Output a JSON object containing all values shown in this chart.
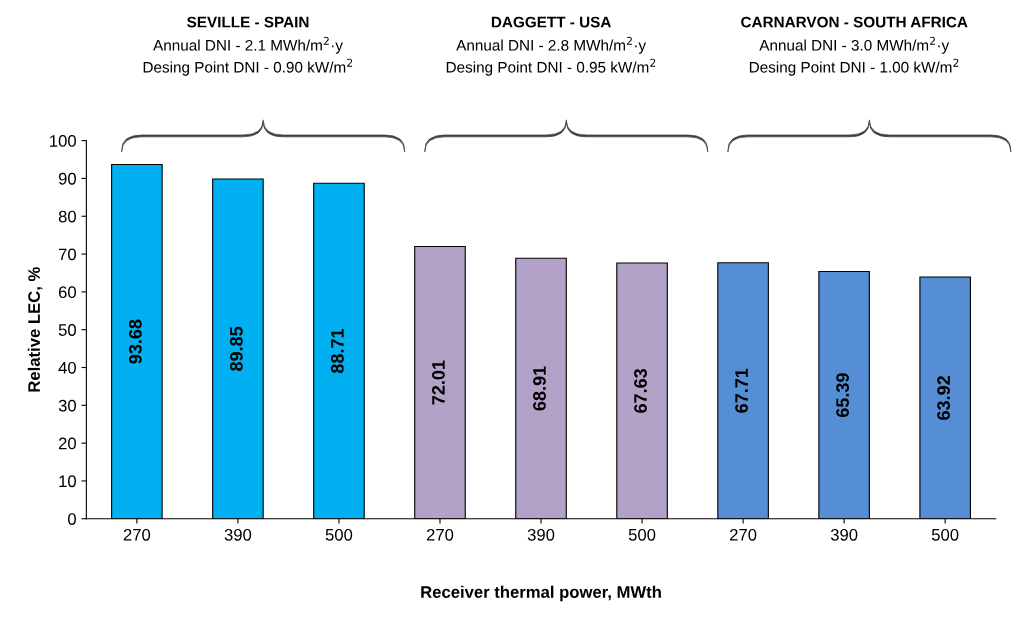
{
  "chart_data": {
    "type": "bar",
    "xlabel": "Receiver thermal power, MWth",
    "ylabel": "Relative LEC, %",
    "categories": [
      "270",
      "390",
      "500",
      "270",
      "390",
      "500",
      "270",
      "390",
      "500"
    ],
    "values": [
      93.68,
      89.85,
      88.71,
      72.01,
      68.91,
      67.63,
      67.71,
      65.39,
      63.92
    ],
    "colors": [
      "#00b0f0",
      "#00b0f0",
      "#00b0f0",
      "#b3a2c7",
      "#b3a2c7",
      "#b3a2c7",
      "#558ed5",
      "#558ed5",
      "#558ed5"
    ],
    "data_labels": true,
    "ylim": [
      0,
      100
    ],
    "yticks": [
      0,
      10,
      20,
      30,
      40,
      50,
      60,
      70,
      80,
      90,
      100
    ],
    "grid": false,
    "legend": false,
    "annotations": [
      "SEVILLE - SPAIN",
      "Annual DNI - 2.1 MWh/m$^{2}$·y",
      "Desing Point DNI - 0.90 kW/m$^{2}$",
      "DAGGETT - USA",
      "Annual DNI - 2.8 MWh/m$^{2}$·y",
      "Desing Point DNI - 0.95 kW/m$^{2}$",
      "CARNARVON - SOUTH AFRICA",
      "Annual DNI - 3.0 MWh/m$^{2}$·y",
      "Desing Point DNI - 1.00 kW/m$^{2}$"
    ]
  }
}
